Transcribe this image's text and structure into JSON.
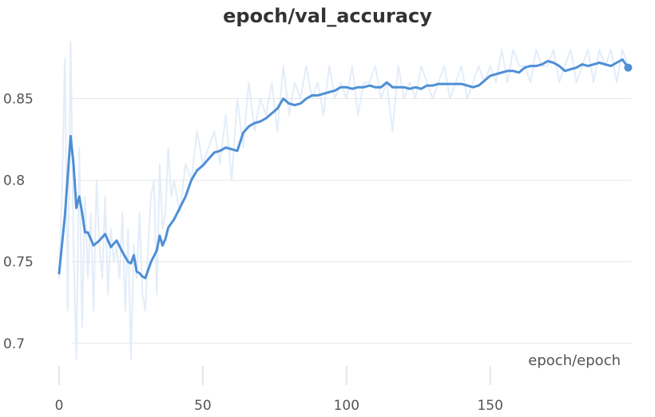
{
  "chart_data": {
    "type": "line",
    "title": "epoch/val_accuracy",
    "xlabel": "epoch/epoch",
    "ylabel": "",
    "xlim": [
      0,
      199
    ],
    "ylim": [
      0.695,
      0.885
    ],
    "x_ticks": [
      0,
      50,
      100,
      150
    ],
    "x_tick_labels": [
      "0",
      "50",
      "100",
      "150"
    ],
    "y_ticks": [
      0.7,
      0.75,
      0.8,
      0.85
    ],
    "y_tick_labels": [
      "0.7",
      "0.75",
      "0.8",
      "0.85"
    ],
    "grid": true,
    "legend": "none",
    "colors": {
      "smoothed": "#4e8fd6",
      "raw": "#dce9f7",
      "grid": "#e6e6e6"
    },
    "series": [
      {
        "role": "smoothed",
        "x": [
          0,
          2,
          4,
          5,
          6,
          7,
          8,
          9,
          10,
          12,
          14,
          16,
          18,
          20,
          22,
          24,
          25,
          26,
          27,
          28,
          29,
          30,
          32,
          34,
          35,
          36,
          37,
          38,
          40,
          42,
          44,
          46,
          48,
          50,
          52,
          54,
          56,
          58,
          60,
          62,
          64,
          66,
          68,
          70,
          72,
          74,
          76,
          78,
          80,
          82,
          84,
          86,
          88,
          90,
          92,
          94,
          96,
          98,
          100,
          102,
          104,
          106,
          108,
          110,
          112,
          114,
          116,
          118,
          120,
          122,
          124,
          126,
          128,
          130,
          132,
          134,
          136,
          138,
          140,
          142,
          144,
          146,
          148,
          150,
          152,
          154,
          156,
          158,
          160,
          162,
          164,
          166,
          168,
          170,
          172,
          174,
          176,
          178,
          180,
          182,
          184,
          186,
          188,
          190,
          192,
          194,
          196,
          198
        ],
        "y": [
          0.743,
          0.778,
          0.827,
          0.81,
          0.783,
          0.79,
          0.78,
          0.768,
          0.768,
          0.76,
          0.763,
          0.767,
          0.759,
          0.763,
          0.756,
          0.75,
          0.749,
          0.754,
          0.744,
          0.743,
          0.741,
          0.74,
          0.75,
          0.757,
          0.766,
          0.76,
          0.764,
          0.771,
          0.776,
          0.783,
          0.79,
          0.8,
          0.806,
          0.809,
          0.813,
          0.817,
          0.818,
          0.82,
          0.819,
          0.818,
          0.829,
          0.833,
          0.835,
          0.836,
          0.838,
          0.841,
          0.844,
          0.85,
          0.847,
          0.846,
          0.847,
          0.85,
          0.852,
          0.852,
          0.853,
          0.854,
          0.855,
          0.857,
          0.857,
          0.856,
          0.857,
          0.857,
          0.858,
          0.857,
          0.857,
          0.86,
          0.857,
          0.857,
          0.857,
          0.856,
          0.857,
          0.856,
          0.858,
          0.858,
          0.859,
          0.859,
          0.859,
          0.859,
          0.859,
          0.858,
          0.857,
          0.858,
          0.861,
          0.864,
          0.865,
          0.866,
          0.867,
          0.867,
          0.866,
          0.869,
          0.87,
          0.87,
          0.871,
          0.873,
          0.872,
          0.87,
          0.867,
          0.868,
          0.869,
          0.871,
          0.87,
          0.871,
          0.872,
          0.871,
          0.87,
          0.872,
          0.874,
          0.869
        ]
      },
      {
        "role": "raw",
        "x": [
          0,
          1,
          2,
          3,
          4,
          5,
          6,
          7,
          8,
          9,
          10,
          11,
          12,
          13,
          14,
          15,
          16,
          17,
          18,
          19,
          20,
          21,
          22,
          23,
          24,
          25,
          26,
          27,
          28,
          29,
          30,
          31,
          32,
          33,
          34,
          35,
          36,
          37,
          38,
          39,
          40,
          42,
          44,
          46,
          48,
          50,
          52,
          54,
          56,
          58,
          60,
          62,
          64,
          66,
          68,
          70,
          72,
          74,
          76,
          78,
          80,
          82,
          84,
          86,
          88,
          90,
          92,
          94,
          96,
          98,
          100,
          102,
          104,
          106,
          108,
          110,
          112,
          114,
          116,
          118,
          120,
          122,
          124,
          126,
          128,
          130,
          132,
          134,
          136,
          138,
          140,
          142,
          144,
          146,
          148,
          150,
          152,
          154,
          156,
          158,
          160,
          162,
          164,
          166,
          168,
          170,
          172,
          174,
          176,
          178,
          180,
          182,
          184,
          186,
          188,
          190,
          192,
          194,
          196,
          198
        ],
        "y": [
          0.74,
          0.79,
          0.875,
          0.72,
          0.885,
          0.76,
          0.69,
          0.82,
          0.71,
          0.79,
          0.74,
          0.78,
          0.72,
          0.8,
          0.76,
          0.74,
          0.79,
          0.73,
          0.77,
          0.75,
          0.76,
          0.74,
          0.78,
          0.72,
          0.77,
          0.69,
          0.76,
          0.74,
          0.78,
          0.73,
          0.72,
          0.76,
          0.79,
          0.8,
          0.73,
          0.81,
          0.77,
          0.78,
          0.82,
          0.79,
          0.8,
          0.78,
          0.81,
          0.8,
          0.83,
          0.81,
          0.82,
          0.83,
          0.81,
          0.84,
          0.8,
          0.85,
          0.82,
          0.86,
          0.83,
          0.85,
          0.84,
          0.86,
          0.83,
          0.87,
          0.84,
          0.86,
          0.85,
          0.87,
          0.85,
          0.86,
          0.84,
          0.87,
          0.85,
          0.86,
          0.85,
          0.87,
          0.84,
          0.86,
          0.86,
          0.87,
          0.85,
          0.86,
          0.83,
          0.87,
          0.85,
          0.86,
          0.85,
          0.87,
          0.86,
          0.85,
          0.86,
          0.87,
          0.85,
          0.86,
          0.87,
          0.85,
          0.86,
          0.87,
          0.86,
          0.87,
          0.86,
          0.88,
          0.86,
          0.88,
          0.87,
          0.87,
          0.86,
          0.88,
          0.87,
          0.87,
          0.88,
          0.86,
          0.87,
          0.88,
          0.86,
          0.87,
          0.88,
          0.86,
          0.88,
          0.87,
          0.88,
          0.86,
          0.88,
          0.87
        ]
      }
    ]
  }
}
